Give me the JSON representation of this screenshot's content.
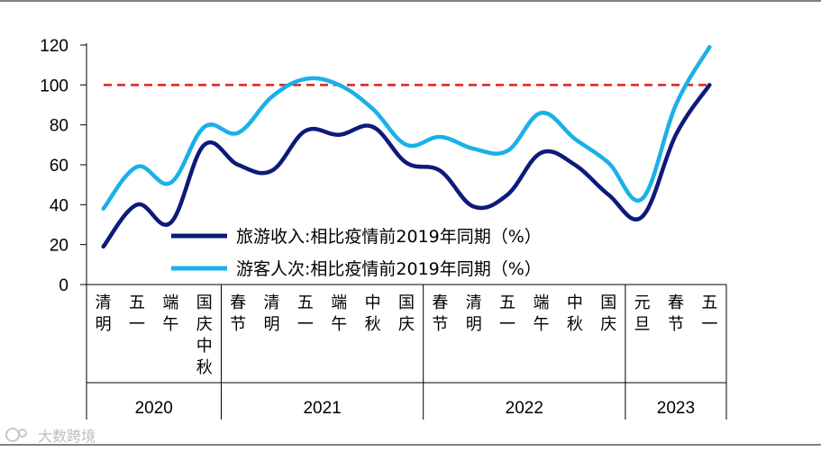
{
  "chart_data": {
    "type": "line",
    "title": "",
    "xlabel": "",
    "ylabel": "",
    "ylim": [
      0,
      120
    ],
    "yticks": [
      0,
      20,
      40,
      60,
      80,
      100,
      120
    ],
    "reference_line": {
      "value": 100,
      "color": "#e02020",
      "style": "dashed"
    },
    "categories": [
      "清明",
      "五一",
      "端午",
      "国庆中秋",
      "春节",
      "清明",
      "五一",
      "端午",
      "中秋",
      "国庆",
      "春节",
      "清明",
      "五一",
      "端午",
      "中秋",
      "国庆",
      "元旦",
      "春节",
      "五一"
    ],
    "groups": [
      {
        "label": "2020",
        "count": 4
      },
      {
        "label": "2021",
        "count": 6
      },
      {
        "label": "2022",
        "count": 6
      },
      {
        "label": "2023",
        "count": 3
      }
    ],
    "series": [
      {
        "name": "旅游收入:相比疫情前2019年同期（%）",
        "color": "#0d1a7a",
        "values": [
          19,
          40,
          31,
          70,
          60,
          57,
          77,
          75,
          79,
          61,
          57,
          39,
          45,
          66,
          60,
          45,
          34,
          75,
          100
        ]
      },
      {
        "name": "游客人次:相比疫情前2019年同期（%）",
        "color": "#1ab0e8",
        "values": [
          38,
          59,
          51,
          79,
          76,
          94,
          103,
          100,
          88,
          70,
          74,
          68,
          67,
          86,
          73,
          61,
          43,
          90,
          119
        ]
      }
    ],
    "legend_position": "center"
  },
  "watermark": "大数跨境"
}
